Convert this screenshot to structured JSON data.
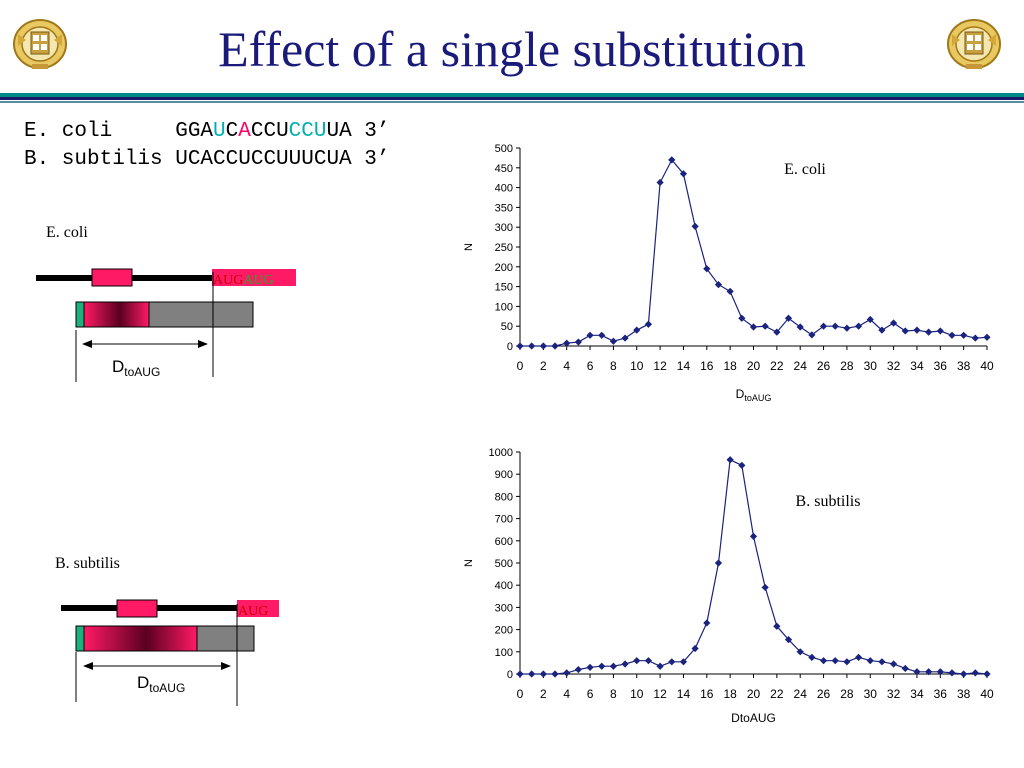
{
  "title": "Effect of a single substitution",
  "sequences": [
    {
      "segments": [
        {
          "text": "E. coli     GGA",
          "color": "#000000"
        },
        {
          "text": "U",
          "color": "#00b0b0"
        },
        {
          "text": "C",
          "color": "#000000"
        },
        {
          "text": "A",
          "color": "#ff0066"
        },
        {
          "text": "CCU",
          "color": "#000000"
        },
        {
          "text": "CCU",
          "color": "#00b0b0"
        },
        {
          "text": "UA 3’",
          "color": "#000000"
        }
      ]
    },
    {
      "segments": [
        {
          "text": "B. subtilis UCACCUCCUUUCUA 3’",
          "color": "#000000"
        }
      ]
    }
  ],
  "diagrams": {
    "ecoli": {
      "label": "E. coli",
      "aug": [
        "AUG",
        "AUG"
      ],
      "aug_colors": [
        "#cc0000",
        "#22aa22"
      ],
      "dist_main": "D",
      "dist_sub": "toAUG"
    },
    "bsub": {
      "label": "B. subtilis",
      "aug": [
        "AUG"
      ],
      "aug_colors": [
        "#cc0000"
      ],
      "dist_main": "D",
      "dist_sub": "toAUG"
    }
  },
  "colors": {
    "title": "#1a1a7a",
    "line_series": "#1a237e",
    "rule_teal": "#008b8b",
    "rule_navy": "#1a1a6a",
    "box_pink": "#ff1a66",
    "box_grey": "#808080",
    "box_green": "#20b080"
  },
  "chart_data": [
    {
      "type": "line",
      "title": "E. coli",
      "xlabel": "DtoAUG",
      "xlabel_main": "D",
      "xlabel_sub": "toAUG",
      "ylabel": "N",
      "xlim": [
        0,
        40
      ],
      "ylim": [
        0,
        500
      ],
      "xticks": [
        0,
        2,
        4,
        6,
        8,
        10,
        12,
        14,
        16,
        18,
        20,
        22,
        24,
        26,
        28,
        30,
        32,
        34,
        36,
        38,
        40
      ],
      "yticks": [
        0,
        50,
        100,
        150,
        200,
        250,
        300,
        350,
        400,
        450,
        500
      ],
      "x": [
        0,
        1,
        2,
        3,
        4,
        5,
        6,
        7,
        8,
        9,
        10,
        11,
        12,
        13,
        14,
        15,
        16,
        17,
        18,
        19,
        20,
        21,
        22,
        23,
        24,
        25,
        26,
        27,
        28,
        29,
        30,
        31,
        32,
        33,
        34,
        35,
        36,
        37,
        38,
        39,
        40
      ],
      "y": [
        0,
        0,
        0,
        0,
        7,
        10,
        27,
        27,
        12,
        20,
        40,
        55,
        413,
        470,
        435,
        302,
        195,
        155,
        138,
        70,
        48,
        50,
        35,
        70,
        48,
        28,
        50,
        50,
        45,
        50,
        67,
        40,
        58,
        38,
        40,
        35,
        38,
        27,
        27,
        20,
        22
      ],
      "grid": false,
      "marker": "diamond"
    },
    {
      "type": "line",
      "title": "B. subtilis",
      "xlabel": "DtoAUG",
      "xlabel_main": "DtoAUG",
      "xlabel_sub": "",
      "ylabel": "N",
      "xlim": [
        0,
        40
      ],
      "ylim": [
        0,
        1000
      ],
      "xticks": [
        0,
        2,
        4,
        6,
        8,
        10,
        12,
        14,
        16,
        18,
        20,
        22,
        24,
        26,
        28,
        30,
        32,
        34,
        36,
        38,
        40
      ],
      "yticks": [
        0,
        100,
        200,
        300,
        400,
        500,
        600,
        700,
        800,
        900,
        1000
      ],
      "x": [
        0,
        1,
        2,
        3,
        4,
        5,
        6,
        7,
        8,
        9,
        10,
        11,
        12,
        13,
        14,
        15,
        16,
        17,
        18,
        19,
        20,
        21,
        22,
        23,
        24,
        25,
        26,
        27,
        28,
        29,
        30,
        31,
        32,
        33,
        34,
        35,
        36,
        37,
        38,
        39,
        40
      ],
      "y": [
        0,
        0,
        0,
        0,
        5,
        20,
        30,
        35,
        35,
        45,
        60,
        60,
        35,
        55,
        55,
        115,
        230,
        500,
        965,
        940,
        620,
        390,
        215,
        155,
        100,
        75,
        60,
        60,
        55,
        75,
        60,
        55,
        45,
        25,
        10,
        10,
        10,
        5,
        0,
        5,
        0
      ],
      "grid": false,
      "marker": "diamond"
    }
  ]
}
